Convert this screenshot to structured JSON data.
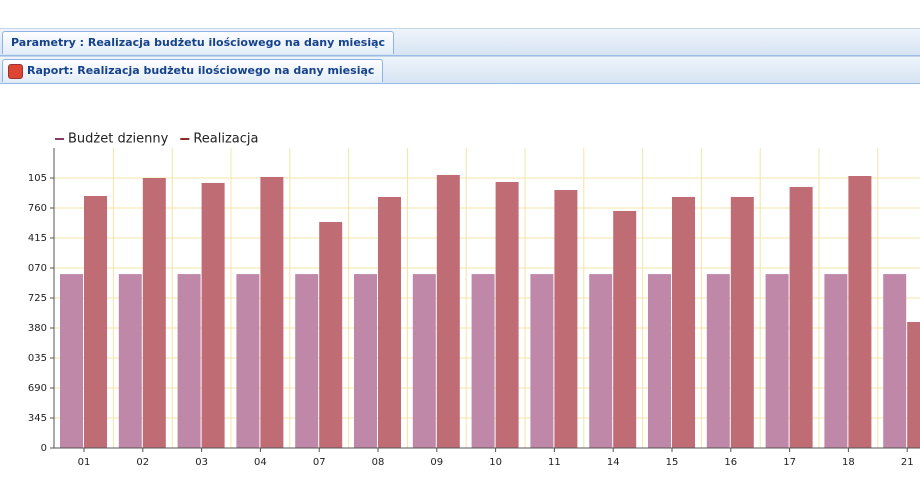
{
  "tabs": {
    "parameters": "Parametry : Realizacja budżetu ilościowego na dany miesiąc",
    "report": "Raport: Realizacja budżetu ilościowego na dany miesiąc"
  },
  "chart_data": {
    "type": "bar",
    "grid": true,
    "categories": [
      "01",
      "02",
      "03",
      "04",
      "07",
      "08",
      "09",
      "10",
      "11",
      "14",
      "15",
      "16",
      "17",
      "18",
      "21"
    ],
    "series": [
      {
        "name": "Budżet dzienny",
        "color": "#bf88a8",
        "values": [
          2000,
          2000,
          2000,
          2000,
          2000,
          2000,
          2000,
          2000,
          2000,
          2000,
          2000,
          2000,
          2000,
          2000,
          2000
        ]
      },
      {
        "name": "Realizacja",
        "color": "#c06c74",
        "values": [
          2898,
          3105,
          3048,
          3117,
          2599,
          2887,
          3140,
          3059,
          2967,
          2726,
          2887,
          2887,
          3002,
          3128,
          1449
        ]
      }
    ],
    "legend_colors": [
      "#8a3a66",
      "#8b2a2a"
    ],
    "ylim": [
      0,
      3450
    ],
    "yticks": [
      0,
      {
        "value": 345,
        "label": "345"
      },
      {
        "value": 690,
        "label": "690"
      },
      {
        "value": 1035,
        "label": "035"
      },
      {
        "value": 1380,
        "label": "380"
      },
      {
        "value": 1725,
        "label": "725"
      },
      {
        "value": 2070,
        "label": "070"
      },
      {
        "value": 2415,
        "label": "415"
      },
      {
        "value": 2760,
        "label": "760"
      },
      {
        "value": 3105,
        "label": "105"
      }
    ]
  }
}
